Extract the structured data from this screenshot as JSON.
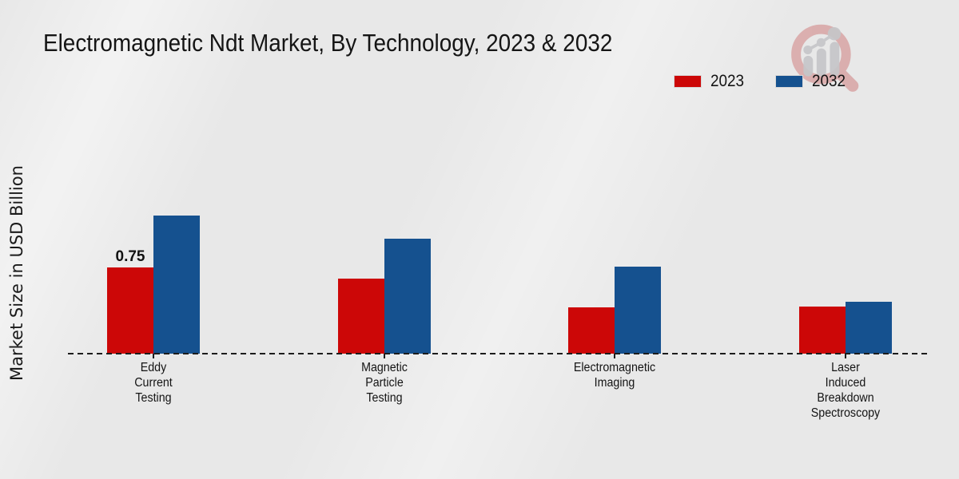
{
  "header": {
    "title": "Electromagnetic Ndt Market, By Technology, 2023 & 2032"
  },
  "legend": {
    "items": [
      {
        "label": "2023",
        "color": "#cc0707"
      },
      {
        "label": "2032",
        "color": "#15518f"
      }
    ]
  },
  "axes": {
    "ylabel": "Market Size in USD Billion"
  },
  "chart_data": {
    "type": "bar",
    "title": "Electromagnetic Ndt Market, By Technology, 2023 & 2032",
    "ylabel": "Market Size in USD Billion",
    "categories": [
      "Eddy Current Testing",
      "Magnetic Particle Testing",
      "Electromagnetic Imaging",
      "Laser Induced Breakdown Spectroscopy"
    ],
    "categories_lines": [
      [
        "Eddy",
        "Current",
        "Testing"
      ],
      [
        "Magnetic",
        "Particle",
        "Testing"
      ],
      [
        "Electromagnetic",
        "Imaging"
      ],
      [
        "Laser",
        "Induced",
        "Breakdown",
        "Spectroscopy"
      ]
    ],
    "series": [
      {
        "name": "2023",
        "color": "#cc0707",
        "values": [
          0.75,
          0.65,
          0.4,
          0.41
        ]
      },
      {
        "name": "2032",
        "color": "#15518f",
        "values": [
          1.2,
          1.0,
          0.76,
          0.45
        ]
      }
    ],
    "value_labels": [
      {
        "series": "2023",
        "category_index": 0,
        "text": "0.75"
      }
    ],
    "ylim": [
      0,
      1.4
    ],
    "grid": false,
    "baseline_style": "dashed",
    "legend_position": "top-right"
  },
  "branding": {
    "logo_icon": "magnifier-growth-chart-logo",
    "logo_circle_color": "#d08080",
    "logo_bars_color": "#c6c6c9",
    "footer_bar_color": "#b00404"
  }
}
